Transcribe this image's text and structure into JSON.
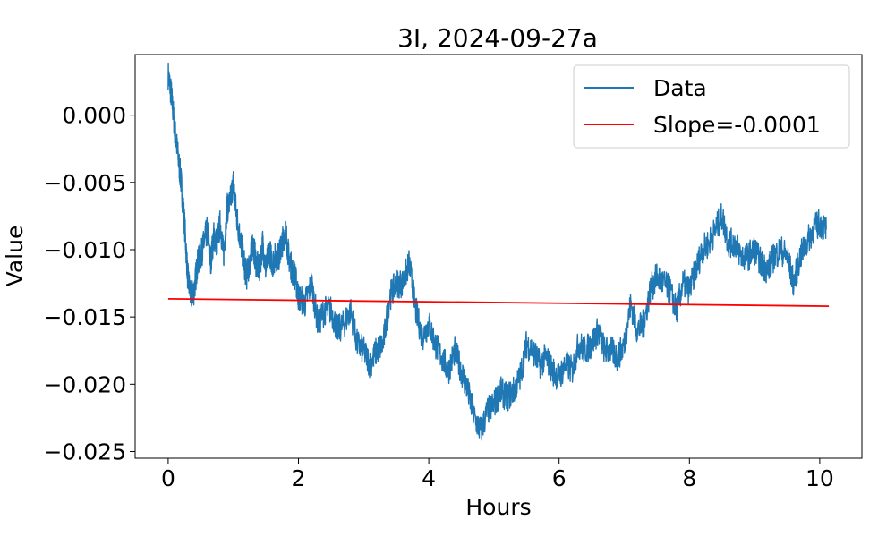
{
  "chart_data": {
    "type": "line",
    "title": "3I, 2024-09-27a",
    "xlabel": "Hours",
    "ylabel": "Value",
    "xlim": [
      -0.507,
      10.647
    ],
    "ylim": [
      -0.0255,
      0.0045
    ],
    "x_ticks": [
      0,
      2,
      4,
      6,
      8,
      10
    ],
    "x_tick_labels": [
      "0",
      "2",
      "4",
      "6",
      "8",
      "10"
    ],
    "y_ticks": [
      0.0,
      -0.005,
      -0.01,
      -0.015,
      -0.02,
      -0.025
    ],
    "y_tick_labels": [
      "0.000",
      "−0.005",
      "−0.010",
      "−0.015",
      "−0.020",
      "−0.025"
    ],
    "grid": false,
    "legend_position": "top-right",
    "series": [
      {
        "name": "Data",
        "color": "#1f77b4",
        "x": [
          0,
          0.05,
          0.1,
          0.15,
          0.2,
          0.25,
          0.3,
          0.35,
          0.4,
          0.45,
          0.5,
          0.55,
          0.6,
          0.65,
          0.7,
          0.75,
          0.8,
          0.85,
          0.9,
          0.95,
          1.0,
          1.05,
          1.1,
          1.15,
          1.2,
          1.25,
          1.3,
          1.35,
          1.4,
          1.45,
          1.5,
          1.55,
          1.6,
          1.65,
          1.7,
          1.75,
          1.8,
          1.85,
          1.9,
          1.95,
          2.0,
          2.1,
          2.2,
          2.3,
          2.4,
          2.5,
          2.6,
          2.7,
          2.8,
          2.9,
          3.0,
          3.1,
          3.2,
          3.3,
          3.4,
          3.5,
          3.6,
          3.7,
          3.8,
          3.9,
          4.0,
          4.1,
          4.2,
          4.3,
          4.4,
          4.5,
          4.6,
          4.7,
          4.8,
          4.9,
          5.0,
          5.1,
          5.2,
          5.3,
          5.4,
          5.5,
          5.6,
          5.7,
          5.8,
          5.9,
          6.0,
          6.1,
          6.2,
          6.3,
          6.4,
          6.5,
          6.6,
          6.7,
          6.8,
          6.9,
          7.0,
          7.1,
          7.2,
          7.3,
          7.4,
          7.5,
          7.6,
          7.7,
          7.8,
          7.9,
          8.0,
          8.1,
          8.2,
          8.3,
          8.4,
          8.5,
          8.6,
          8.7,
          8.8,
          8.9,
          9.0,
          9.1,
          9.2,
          9.3,
          9.4,
          9.5,
          9.6,
          9.7,
          9.8,
          9.9,
          10.0,
          10.1
        ],
        "y": [
          0.003,
          0.0015,
          -0.001,
          -0.003,
          -0.005,
          -0.008,
          -0.012,
          -0.0135,
          -0.013,
          -0.011,
          -0.0105,
          -0.0095,
          -0.0085,
          -0.011,
          -0.009,
          -0.0095,
          -0.008,
          -0.0105,
          -0.007,
          -0.0065,
          -0.005,
          -0.0075,
          -0.009,
          -0.0105,
          -0.012,
          -0.011,
          -0.0095,
          -0.011,
          -0.0115,
          -0.0095,
          -0.0115,
          -0.01,
          -0.011,
          -0.0105,
          -0.0105,
          -0.0095,
          -0.0085,
          -0.0105,
          -0.0115,
          -0.012,
          -0.0135,
          -0.014,
          -0.0125,
          -0.0155,
          -0.0145,
          -0.0145,
          -0.016,
          -0.0155,
          -0.0145,
          -0.017,
          -0.0175,
          -0.0185,
          -0.0175,
          -0.017,
          -0.0135,
          -0.0125,
          -0.0125,
          -0.011,
          -0.0145,
          -0.0165,
          -0.0155,
          -0.017,
          -0.018,
          -0.019,
          -0.0175,
          -0.019,
          -0.0205,
          -0.0225,
          -0.0235,
          -0.022,
          -0.0215,
          -0.0205,
          -0.021,
          -0.0205,
          -0.0195,
          -0.017,
          -0.0175,
          -0.0185,
          -0.018,
          -0.019,
          -0.0195,
          -0.0185,
          -0.019,
          -0.017,
          -0.0175,
          -0.017,
          -0.016,
          -0.0175,
          -0.0175,
          -0.018,
          -0.017,
          -0.014,
          -0.016,
          -0.0155,
          -0.013,
          -0.012,
          -0.0125,
          -0.013,
          -0.0145,
          -0.0125,
          -0.013,
          -0.0115,
          -0.01,
          -0.0095,
          -0.0085,
          -0.0075,
          -0.0095,
          -0.0095,
          -0.0105,
          -0.0105,
          -0.01,
          -0.011,
          -0.0115,
          -0.0105,
          -0.01,
          -0.0105,
          -0.0125,
          -0.0105,
          -0.0095,
          -0.0085,
          -0.008,
          -0.0085
        ]
      },
      {
        "name": "Slope=-0.0001",
        "color": "#ff0000",
        "x": [
          0,
          10.14
        ],
        "y": [
          -0.01365,
          -0.0142
        ]
      }
    ]
  }
}
